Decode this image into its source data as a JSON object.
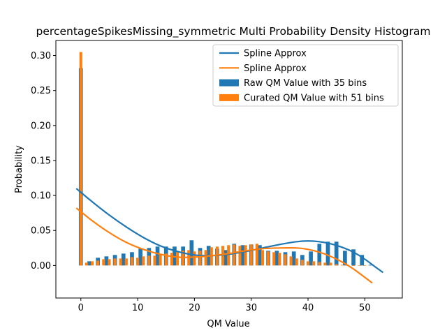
{
  "chart_data": {
    "type": "bar",
    "title": "percentageSpikesMissing_symmetric Multi Probability Density Histogram",
    "xlabel": "QM Value",
    "ylabel": "Probability",
    "xlim": [
      -4.4,
      56.6
    ],
    "ylim": [
      -0.0465,
      0.3215
    ],
    "xticks": [
      0,
      10,
      20,
      30,
      40,
      50
    ],
    "xtick_labels": [
      "0",
      "10",
      "20",
      "30",
      "40",
      "50"
    ],
    "yticks": [
      0.0,
      0.05,
      0.1,
      0.15,
      0.2,
      0.25,
      0.3
    ],
    "ytick_labels": [
      "0.00",
      "0.05",
      "0.10",
      "0.15",
      "0.20",
      "0.25",
      "0.30"
    ],
    "grid": false,
    "legend_position": "top-right",
    "colors": {
      "raw": "#1f77b4",
      "curated": "#ff7f0e"
    },
    "legend": [
      {
        "label": "Spline Approx",
        "kind": "line",
        "color": "#1f77b4"
      },
      {
        "label": "Spline Approx",
        "kind": "line",
        "color": "#ff7f0e"
      },
      {
        "label": "Raw QM Value with 35 bins",
        "kind": "bar",
        "color": "#1f77b4"
      },
      {
        "label": "Curated QM Value with 51 bins",
        "kind": "bar",
        "color": "#ff7f0e"
      }
    ],
    "series": [
      {
        "name": "Raw QM Value with 35 bins",
        "kind": "bar",
        "color": "#1f77b4",
        "bar_width": 0.7,
        "x": [
          0,
          1.5,
          3,
          4.5,
          6,
          7.5,
          9,
          10.5,
          12,
          13.5,
          15,
          16.5,
          18,
          19.5,
          21,
          22.5,
          24,
          25.5,
          27,
          28.5,
          30,
          31.5,
          33,
          34.5,
          36,
          37.5,
          39,
          40.5,
          42,
          43.5,
          45,
          46.5,
          48,
          49.5,
          51
        ],
        "values": [
          0.282,
          0.006,
          0.011,
          0.013,
          0.015,
          0.017,
          0.019,
          0.024,
          0.025,
          0.027,
          0.027,
          0.027,
          0.027,
          0.036,
          0.025,
          0.028,
          0.024,
          0.022,
          0.031,
          0.029,
          0.03,
          0.029,
          0.021,
          0.021,
          0.019,
          0.02,
          0.015,
          0.02,
          0.031,
          0.034,
          0.034,
          0.021,
          0.023,
          0.015,
          0.001
        ]
      },
      {
        "name": "Curated QM Value with 51 bins",
        "kind": "bar",
        "color": "#ff7f0e",
        "bar_width": 0.5,
        "x": [
          0,
          1,
          2,
          3,
          4,
          5,
          6,
          7,
          8,
          9,
          10,
          11,
          12,
          13,
          14,
          15,
          16,
          17,
          18,
          19,
          20,
          21,
          22,
          23,
          24,
          25,
          26,
          27,
          28,
          29,
          30,
          31,
          32,
          33,
          34,
          35,
          36,
          37,
          38,
          39,
          40,
          41,
          42,
          43,
          44,
          45,
          46,
          47,
          48,
          49,
          50
        ],
        "values": [
          0.305,
          0.004,
          0.006,
          0.007,
          0.009,
          0.009,
          0.01,
          0.01,
          0.01,
          0.012,
          0.011,
          0.013,
          0.014,
          0.014,
          0.016,
          0.017,
          0.018,
          0.02,
          0.021,
          0.022,
          0.02,
          0.021,
          0.022,
          0.026,
          0.027,
          0.028,
          0.029,
          0.03,
          0.028,
          0.029,
          0.03,
          0.031,
          0.022,
          0.02,
          0.019,
          0.018,
          0.016,
          0.013,
          0.01,
          0.008,
          0.006,
          0.006,
          0.005,
          0.004,
          0.004,
          0.002,
          0.001,
          0.0,
          0.0,
          0.0,
          0.0
        ]
      },
      {
        "name": "Spline Approx",
        "kind": "line",
        "color": "#1f77b4",
        "x": [
          -0.8,
          2,
          5,
          8,
          11,
          14,
          17,
          20,
          23,
          26,
          29,
          32,
          35,
          38,
          40,
          42,
          44,
          46,
          48,
          50,
          52,
          53.2
        ],
        "values": [
          0.11,
          0.091,
          0.072,
          0.055,
          0.04,
          0.028,
          0.02,
          0.015,
          0.014,
          0.016,
          0.02,
          0.025,
          0.03,
          0.034,
          0.035,
          0.034,
          0.031,
          0.026,
          0.019,
          0.009,
          -0.003,
          -0.01
        ]
      },
      {
        "name": "Spline Approx",
        "kind": "line",
        "color": "#ff7f0e",
        "x": [
          -0.8,
          2,
          5,
          8,
          11,
          14,
          17,
          20,
          23,
          26,
          29,
          32,
          35,
          38,
          40,
          42,
          44,
          46,
          48,
          50,
          51.3
        ],
        "values": [
          0.082,
          0.064,
          0.047,
          0.033,
          0.023,
          0.016,
          0.012,
          0.012,
          0.014,
          0.017,
          0.021,
          0.024,
          0.025,
          0.025,
          0.023,
          0.019,
          0.013,
          0.005,
          -0.005,
          -0.017,
          -0.025
        ]
      }
    ]
  }
}
